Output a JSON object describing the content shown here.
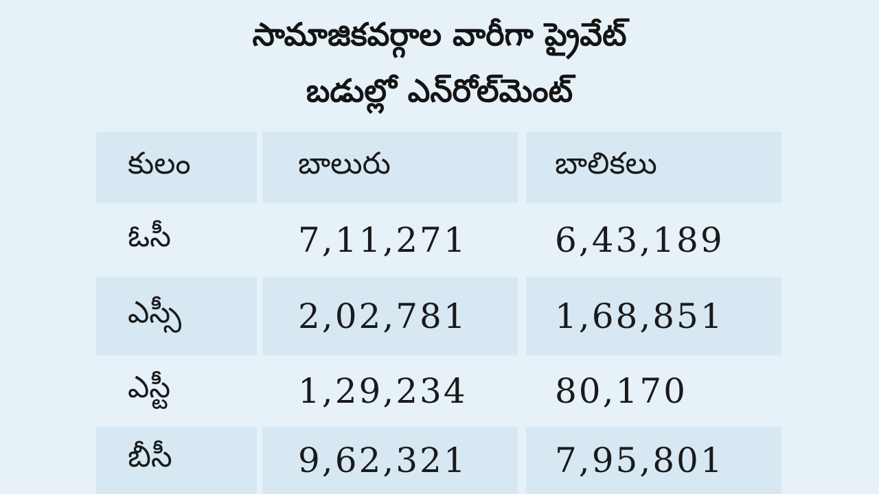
{
  "chart_data": {
    "type": "table",
    "title": "సామాజికవర్గాల వారీగా ప్రైవేట్ బడుల్లో ఎన్‌రోల్‌మెంట్",
    "title_lines": [
      "సామాజికవర్గాల వారీగా ప్రైవేట్",
      "బడుల్లో ఎన్‌రోల్‌మెంట్"
    ],
    "columns": [
      "కులం",
      "బాలురు",
      "బాలికలు"
    ],
    "rows": [
      {
        "category": "ఓసీ",
        "boys": "7,11,271",
        "girls": "6,43,189"
      },
      {
        "category": "ఎస్సీ",
        "boys": "2,02,781",
        "girls": "1,68,851"
      },
      {
        "category": "ఎస్టీ",
        "boys": "1,29,234",
        "girls": "80,170"
      },
      {
        "category": "బీసీ",
        "boys": "9,62,321",
        "girls": "7,95,801"
      }
    ],
    "values": {
      "boys": [
        711271,
        202781,
        129234,
        962321
      ],
      "girls": [
        643189,
        168851,
        80170,
        795801
      ]
    }
  },
  "colors": {
    "background": "#e6f1f8",
    "shaded_row": "#d7e8f3",
    "text": "#1a1a1a"
  }
}
